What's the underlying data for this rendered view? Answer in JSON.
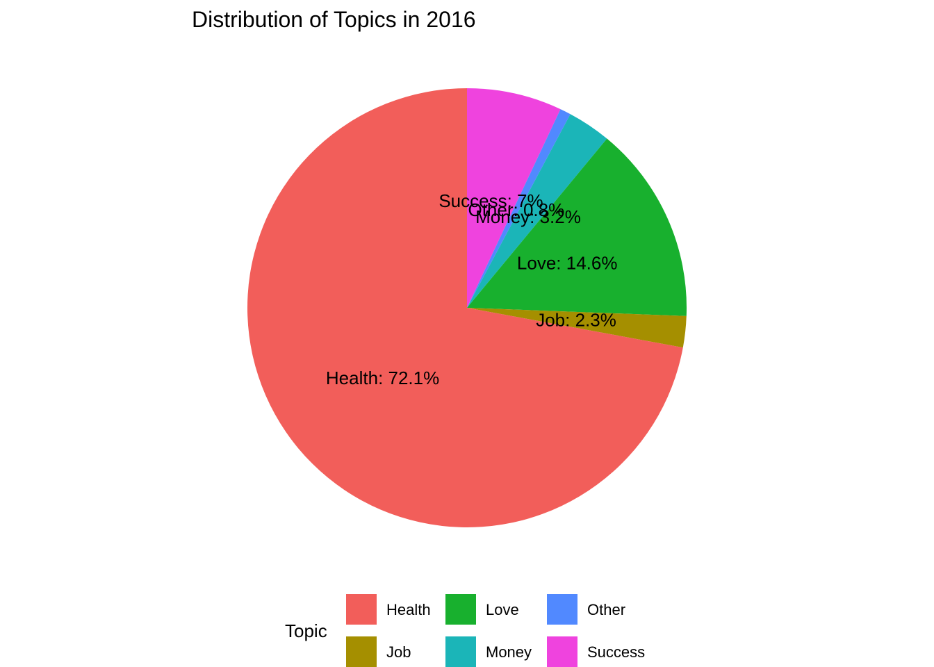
{
  "chart_data": {
    "type": "pie",
    "title": "Distribution of Topics in 2016",
    "legend_title": "Topic",
    "legend_position": "bottom",
    "slices": [
      {
        "name": "Health",
        "value": 72.1,
        "label": "Health: 72.1%",
        "color": "#F25E5A"
      },
      {
        "name": "Job",
        "value": 2.3,
        "label": "Job: 2.3%",
        "color": "#A58F00"
      },
      {
        "name": "Love",
        "value": 14.6,
        "label": "Love: 14.6%",
        "color": "#18B02E"
      },
      {
        "name": "Money",
        "value": 3.2,
        "label": "Money: 3.2%",
        "color": "#1BB5B8"
      },
      {
        "name": "Other",
        "value": 0.8,
        "label": "Other: 0.8%",
        "color": "#5189FF"
      },
      {
        "name": "Success",
        "value": 7.0,
        "label": "Success: 7%",
        "color": "#EF43DE"
      }
    ]
  }
}
